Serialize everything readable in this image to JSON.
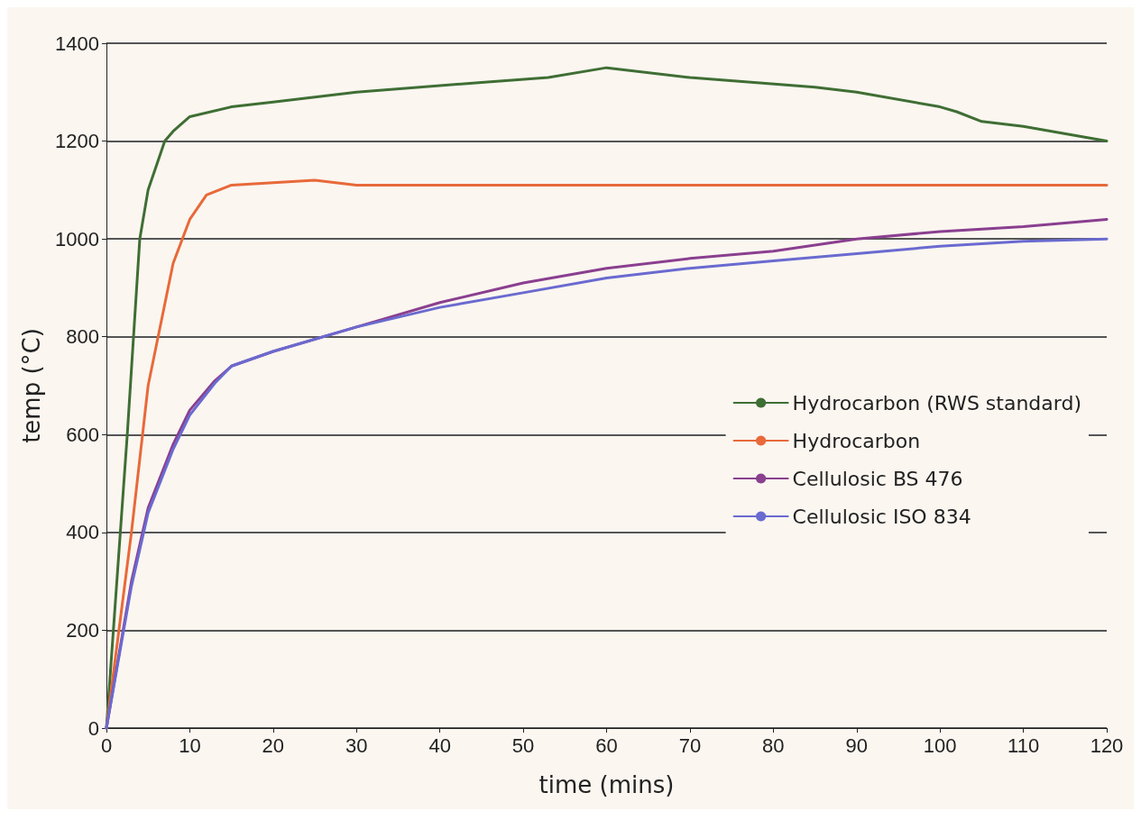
{
  "chart_data": {
    "type": "line",
    "xlabel": "time (mins)",
    "ylabel": "temp (°C)",
    "xlim": [
      0,
      120
    ],
    "ylim": [
      0,
      1400
    ],
    "xticks": [
      0,
      10,
      20,
      30,
      40,
      50,
      60,
      70,
      80,
      90,
      100,
      110,
      120
    ],
    "yticks": [
      0,
      200,
      400,
      600,
      800,
      1000,
      1200,
      1400
    ],
    "grid": "y",
    "legend": "right",
    "marker": "none",
    "line_style": "solid",
    "series": [
      {
        "name": "Hydrocarbon (RWS standard)",
        "color": "#3f6e34",
        "x": [
          0,
          2.5,
          4,
          5,
          7,
          8,
          10,
          15,
          20,
          30,
          45,
          53,
          60,
          70,
          85,
          90,
          100,
          102,
          105,
          110,
          120
        ],
        "values": [
          0,
          600,
          1000,
          1100,
          1200,
          1220,
          1250,
          1270,
          1280,
          1300,
          1320,
          1330,
          1350,
          1330,
          1310,
          1300,
          1270,
          1260,
          1240,
          1230,
          1200
        ]
      },
      {
        "name": "Hydrocarbon",
        "color": "#e8693a",
        "x": [
          0,
          3,
          5,
          8,
          10,
          12,
          15,
          25,
          30,
          60,
          120
        ],
        "values": [
          0,
          400,
          700,
          950,
          1040,
          1090,
          1110,
          1120,
          1110,
          1110,
          1110
        ]
      },
      {
        "name": "Cellulosic BS 476",
        "color": "#8a3f8f",
        "x": [
          0,
          3,
          5,
          8,
          10,
          13,
          15,
          20,
          30,
          40,
          50,
          60,
          70,
          80,
          90,
          100,
          110,
          120
        ],
        "values": [
          0,
          300,
          450,
          580,
          650,
          710,
          740,
          770,
          820,
          870,
          910,
          940,
          960,
          975,
          1000,
          1015,
          1025,
          1040
        ]
      },
      {
        "name": "Cellulosic ISO 834",
        "color": "#6a6ad0",
        "x": [
          0,
          3,
          5,
          8,
          10,
          13,
          15,
          20,
          30,
          40,
          50,
          60,
          70,
          80,
          90,
          100,
          110,
          120
        ],
        "values": [
          0,
          290,
          440,
          570,
          640,
          705,
          740,
          770,
          820,
          860,
          890,
          920,
          940,
          955,
          970,
          985,
          995,
          1000
        ]
      }
    ]
  }
}
